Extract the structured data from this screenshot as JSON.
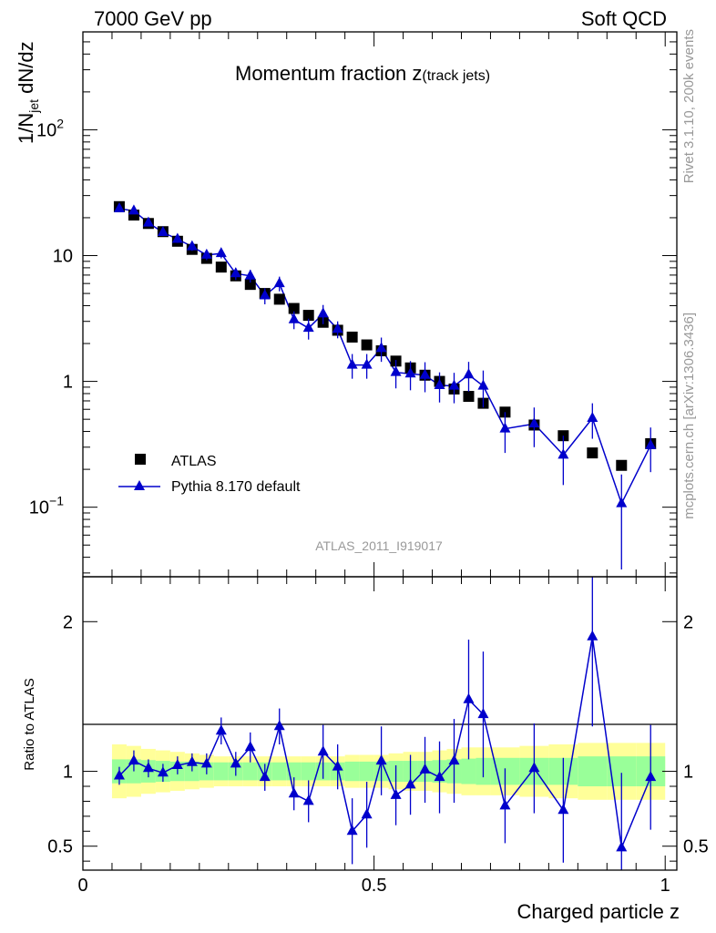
{
  "header": {
    "left": "7000 GeV pp",
    "right": "Soft QCD"
  },
  "side_labels": {
    "rivet": "Rivet 3.1.10,  200k events",
    "mcplots": "mcplots.cern.ch [arXiv:1306.3436]"
  },
  "colors": {
    "data": "#000000",
    "mc": "#0000cc",
    "band_inner": "#99ff99",
    "band_outer": "#ffff99"
  },
  "chart_data": [
    {
      "type": "scatter",
      "panel": "main",
      "title_main": "Momentum fraction z",
      "title_sub": "(track jets)",
      "ylabel": "1/N",
      "ylabel_sub": "jet",
      "ylabel_tail": " dN/dz",
      "yscale": "log",
      "ylim": [
        0.028,
        600
      ],
      "xlim": [
        0,
        1.02
      ],
      "y_ticks": [
        {
          "value": 100,
          "base": "10",
          "exp": "2"
        },
        {
          "value": 10,
          "base": "10",
          "exp": ""
        },
        {
          "value": 1,
          "base": "1",
          "exp": ""
        },
        {
          "value": 0.1,
          "base": "10",
          "exp": "−1"
        }
      ],
      "watermark": "ATLAS_2011_I919017",
      "legend": [
        "ATLAS",
        "Pythia 8.170 default"
      ],
      "legend_position": "lower-left",
      "series": [
        {
          "name": "ATLAS",
          "x": [
            0.0625,
            0.0875,
            0.1125,
            0.1375,
            0.1625,
            0.1875,
            0.2125,
            0.2375,
            0.2625,
            0.2875,
            0.3125,
            0.3375,
            0.3625,
            0.3875,
            0.4125,
            0.4375,
            0.4625,
            0.4875,
            0.5125,
            0.5375,
            0.5625,
            0.5875,
            0.6125,
            0.6375,
            0.6625,
            0.6875,
            0.725,
            0.775,
            0.825,
            0.875,
            0.925,
            0.975
          ],
          "y": [
            24.5,
            21,
            18,
            15.5,
            13,
            11.2,
            9.5,
            8.1,
            6.9,
            5.9,
            5.0,
            4.5,
            3.8,
            3.35,
            2.95,
            2.55,
            2.25,
            1.95,
            1.75,
            1.45,
            1.28,
            1.12,
            1.0,
            0.87,
            0.76,
            0.67,
            0.57,
            0.45,
            0.37,
            0.27,
            0.215,
            0.32
          ]
        },
        {
          "name": "Pythia 8.170 default",
          "x": [
            0.0625,
            0.0875,
            0.1125,
            0.1375,
            0.1625,
            0.1875,
            0.2125,
            0.2375,
            0.2625,
            0.2875,
            0.3125,
            0.3375,
            0.3625,
            0.3875,
            0.4125,
            0.4375,
            0.4625,
            0.4875,
            0.5125,
            0.5375,
            0.5625,
            0.5875,
            0.6125,
            0.6375,
            0.6625,
            0.6875,
            0.725,
            0.775,
            0.825,
            0.875,
            0.925,
            0.975
          ],
          "y": [
            23.6,
            22.7,
            18.2,
            15.3,
            13.5,
            11.8,
            10.1,
            10.4,
            7.2,
            6.9,
            4.8,
            6.0,
            3.1,
            2.65,
            3.45,
            2.6,
            1.35,
            1.35,
            1.83,
            1.18,
            1.15,
            1.12,
            0.93,
            0.92,
            1.13,
            0.92,
            0.42,
            0.46,
            0.26,
            0.51,
            0.107,
            0.31
          ],
          "yerr": [
            1.0,
            1.1,
            1.0,
            1.0,
            0.9,
            0.9,
            0.9,
            0.9,
            0.8,
            0.8,
            0.7,
            0.8,
            0.5,
            0.5,
            0.6,
            0.4,
            0.3,
            0.3,
            0.4,
            0.3,
            0.3,
            0.3,
            0.25,
            0.25,
            0.3,
            0.3,
            0.15,
            0.16,
            0.11,
            0.16,
            0.075,
            0.12
          ]
        }
      ]
    },
    {
      "type": "scatter",
      "panel": "ratio",
      "xlabel": "Charged particle z",
      "ylabel": "Ratio to ATLAS",
      "ylim": [
        0.34,
        2.3
      ],
      "xlim": [
        0,
        1.02
      ],
      "y_ticks": [
        {
          "value": 0.5,
          "label": "0.5"
        },
        {
          "value": 1,
          "label": "1"
        },
        {
          "value": 2,
          "label": "2"
        }
      ],
      "x_ticks": [
        {
          "value": 0,
          "label": "0"
        },
        {
          "value": 0.5,
          "label": "0.5"
        },
        {
          "value": 1,
          "label": "1"
        }
      ],
      "band_edges": [
        0.05,
        0.075,
        0.1,
        0.125,
        0.15,
        0.175,
        0.2,
        0.225,
        0.25,
        0.275,
        0.3,
        0.325,
        0.35,
        0.375,
        0.4,
        0.425,
        0.45,
        0.475,
        0.5,
        0.525,
        0.55,
        0.575,
        0.6,
        0.625,
        0.65,
        0.675,
        0.7,
        0.75,
        0.8,
        0.85,
        0.9,
        0.95,
        1.0
      ],
      "band_inner_halfwidth": [
        0.08,
        0.08,
        0.075,
        0.07,
        0.065,
        0.065,
        0.06,
        0.06,
        0.06,
        0.06,
        0.06,
        0.06,
        0.06,
        0.06,
        0.06,
        0.06,
        0.065,
        0.065,
        0.065,
        0.07,
        0.07,
        0.07,
        0.075,
        0.08,
        0.085,
        0.09,
        0.09,
        0.09,
        0.09,
        0.1,
        0.1,
        0.1
      ],
      "band_outer_halfwidth": [
        0.18,
        0.17,
        0.15,
        0.14,
        0.13,
        0.12,
        0.11,
        0.1,
        0.1,
        0.1,
        0.1,
        0.1,
        0.1,
        0.1,
        0.1,
        0.1,
        0.11,
        0.11,
        0.11,
        0.12,
        0.13,
        0.13,
        0.14,
        0.15,
        0.16,
        0.16,
        0.16,
        0.17,
        0.18,
        0.19,
        0.19,
        0.19
      ],
      "series": [
        {
          "name": "Pythia 8.170 default",
          "x": [
            0.0625,
            0.0875,
            0.1125,
            0.1375,
            0.1625,
            0.1875,
            0.2125,
            0.2375,
            0.2625,
            0.2875,
            0.3125,
            0.3375,
            0.3625,
            0.3875,
            0.4125,
            0.4375,
            0.4625,
            0.4875,
            0.5125,
            0.5375,
            0.5625,
            0.5875,
            0.6125,
            0.6375,
            0.6625,
            0.6875,
            0.725,
            0.775,
            0.825,
            0.875,
            0.925,
            0.975
          ],
          "y": [
            0.97,
            1.07,
            1.02,
            0.99,
            1.04,
            1.06,
            1.05,
            1.27,
            1.05,
            1.16,
            0.96,
            1.3,
            0.85,
            0.8,
            1.13,
            1.03,
            0.6,
            0.71,
            1.07,
            0.84,
            0.91,
            1.01,
            0.96,
            1.07,
            1.48,
            1.38,
            0.77,
            1.02,
            0.74,
            1.9,
            0.49,
            0.96
          ],
          "yerr": [
            0.06,
            0.07,
            0.06,
            0.06,
            0.06,
            0.06,
            0.07,
            0.09,
            0.08,
            0.1,
            0.09,
            0.12,
            0.11,
            0.14,
            0.18,
            0.15,
            0.22,
            0.22,
            0.23,
            0.2,
            0.2,
            0.22,
            0.24,
            0.28,
            0.4,
            0.42,
            0.25,
            0.3,
            0.35,
            0.6,
            0.5,
            0.35
          ]
        }
      ]
    }
  ]
}
